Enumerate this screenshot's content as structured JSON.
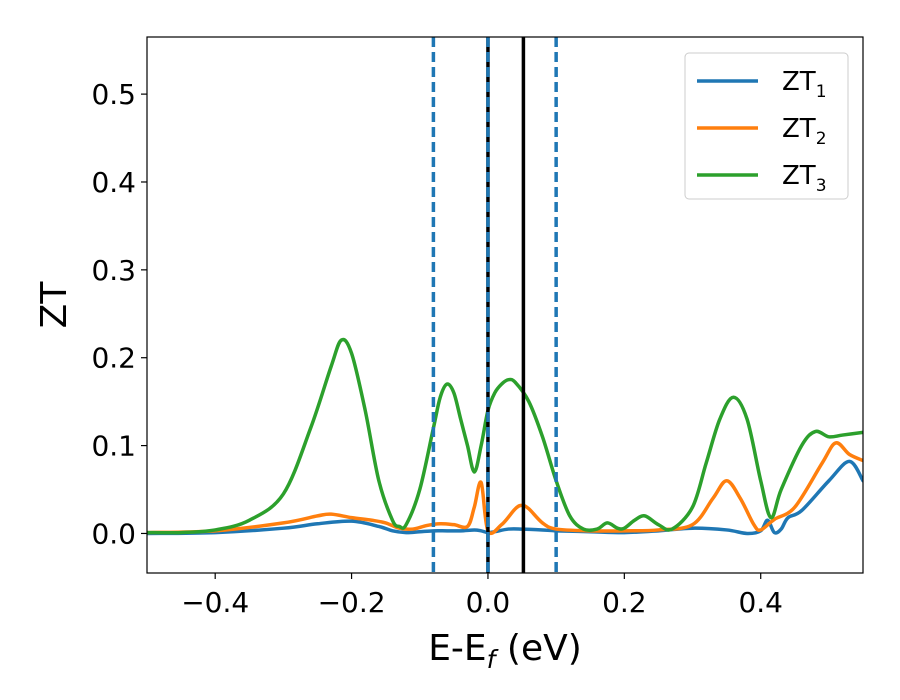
{
  "chart_data": {
    "type": "line",
    "title": "",
    "xlabel": "E-E",
    "xlabel_sub": "f",
    "xlabel_unit": " (eV)",
    "ylabel": "ZT",
    "xlim": [
      -0.5,
      0.55
    ],
    "ylim": [
      -0.045,
      0.565
    ],
    "xticks": [
      -0.4,
      -0.2,
      0.0,
      0.2,
      0.4
    ],
    "xtick_labels": [
      "−0.4",
      "−0.2",
      "0.0",
      "0.2",
      "0.4"
    ],
    "yticks": [
      0.0,
      0.1,
      0.2,
      0.3,
      0.4,
      0.5
    ],
    "ytick_labels": [
      "0.0",
      "0.1",
      "0.2",
      "0.3",
      "0.4",
      "0.5"
    ],
    "grid": false,
    "legend": {
      "position": "top-right",
      "entries": [
        {
          "base": "ZT",
          "sub": "1",
          "color": "#1f77b4"
        },
        {
          "base": "ZT",
          "sub": "2",
          "color": "#ff7f0e"
        },
        {
          "base": "ZT",
          "sub": "3",
          "color": "#2ca02c"
        }
      ]
    },
    "vlines": [
      {
        "x": -0.08,
        "style": "dashed",
        "color": "#1f77b4"
      },
      {
        "x": 0.0,
        "style": "solid",
        "color": "#000000"
      },
      {
        "x": 0.0,
        "style": "dashed",
        "color": "#1f77b4"
      },
      {
        "x": 0.052,
        "style": "solid",
        "color": "#000000"
      },
      {
        "x": 0.1,
        "style": "dashed",
        "color": "#1f77b4"
      }
    ],
    "series": [
      {
        "name": "ZT1",
        "color": "#1f77b4",
        "x": [
          -0.5,
          -0.4,
          -0.3,
          -0.25,
          -0.2,
          -0.16,
          -0.14,
          -0.12,
          -0.1,
          -0.08,
          -0.06,
          -0.04,
          -0.02,
          -0.01,
          0.0,
          0.01,
          0.03,
          0.05,
          0.08,
          0.1,
          0.15,
          0.2,
          0.25,
          0.3,
          0.35,
          0.38,
          0.4,
          0.41,
          0.42,
          0.43,
          0.44,
          0.46,
          0.5,
          0.53,
          0.55
        ],
        "y": [
          0.0,
          0.001,
          0.006,
          0.011,
          0.014,
          0.008,
          0.003,
          0.001,
          0.002,
          0.003,
          0.003,
          0.003,
          0.004,
          0.003,
          0.001,
          0.002,
          0.005,
          0.005,
          0.004,
          0.003,
          0.002,
          0.001,
          0.003,
          0.006,
          0.004,
          0.0,
          0.003,
          0.015,
          0.001,
          0.005,
          0.018,
          0.026,
          0.06,
          0.082,
          0.06
        ]
      },
      {
        "name": "ZT2",
        "color": "#ff7f0e",
        "x": [
          -0.5,
          -0.4,
          -0.3,
          -0.25,
          -0.23,
          -0.2,
          -0.17,
          -0.15,
          -0.13,
          -0.11,
          -0.09,
          -0.07,
          -0.05,
          -0.03,
          -0.02,
          -0.01,
          0.0,
          0.02,
          0.04,
          0.05,
          0.06,
          0.08,
          0.1,
          0.15,
          0.2,
          0.25,
          0.3,
          0.33,
          0.35,
          0.37,
          0.39,
          0.4,
          0.42,
          0.45,
          0.49,
          0.51,
          0.53,
          0.55
        ],
        "y": [
          0.001,
          0.003,
          0.012,
          0.02,
          0.022,
          0.018,
          0.015,
          0.012,
          0.006,
          0.005,
          0.009,
          0.011,
          0.01,
          0.008,
          0.03,
          0.058,
          0.003,
          0.01,
          0.028,
          0.032,
          0.028,
          0.012,
          0.005,
          0.003,
          0.003,
          0.004,
          0.01,
          0.04,
          0.06,
          0.04,
          0.01,
          0.004,
          0.016,
          0.03,
          0.08,
          0.103,
          0.09,
          0.083
        ]
      },
      {
        "name": "ZT3",
        "color": "#2ca02c",
        "x": [
          -0.5,
          -0.45,
          -0.4,
          -0.35,
          -0.3,
          -0.26,
          -0.23,
          -0.215,
          -0.2,
          -0.18,
          -0.16,
          -0.14,
          -0.13,
          -0.12,
          -0.1,
          -0.08,
          -0.07,
          -0.06,
          -0.05,
          -0.04,
          -0.03,
          -0.02,
          -0.01,
          0.0,
          0.01,
          0.02,
          0.03,
          0.04,
          0.06,
          0.08,
          0.1,
          0.12,
          0.14,
          0.16,
          0.175,
          0.19,
          0.2,
          0.215,
          0.23,
          0.25,
          0.27,
          0.3,
          0.32,
          0.34,
          0.36,
          0.38,
          0.4,
          0.415,
          0.43,
          0.46,
          0.48,
          0.5,
          0.52,
          0.55
        ],
        "y": [
          0.001,
          0.001,
          0.004,
          0.015,
          0.045,
          0.12,
          0.19,
          0.22,
          0.205,
          0.14,
          0.06,
          0.015,
          0.008,
          0.01,
          0.05,
          0.12,
          0.155,
          0.17,
          0.16,
          0.13,
          0.1,
          0.07,
          0.1,
          0.14,
          0.16,
          0.17,
          0.175,
          0.172,
          0.15,
          0.11,
          0.06,
          0.02,
          0.005,
          0.005,
          0.012,
          0.006,
          0.006,
          0.015,
          0.02,
          0.01,
          0.005,
          0.03,
          0.08,
          0.13,
          0.155,
          0.13,
          0.06,
          0.018,
          0.05,
          0.1,
          0.116,
          0.11,
          0.112,
          0.115
        ]
      }
    ]
  }
}
